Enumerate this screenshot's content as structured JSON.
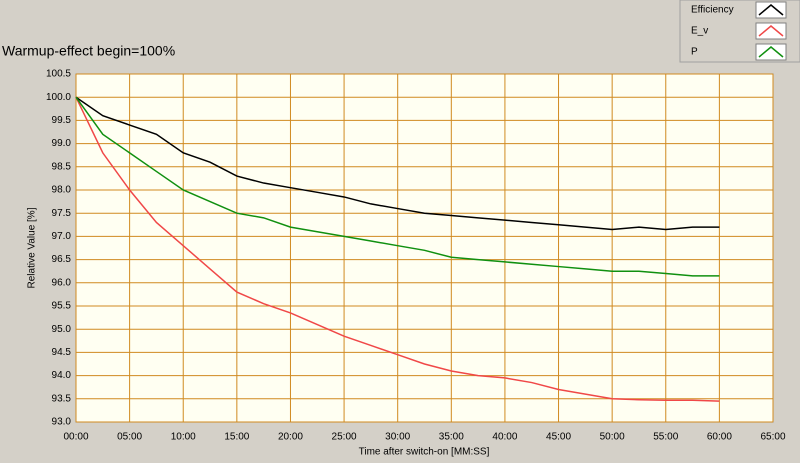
{
  "chart_data": {
    "type": "line",
    "title": "Warmup-effect begin=100%",
    "x_label": "Time after switch-on [MM:SS]",
    "y_label": "Relative Value [%]",
    "x": [
      0,
      2.5,
      5,
      7.5,
      10,
      12.5,
      15,
      17.5,
      20,
      22.5,
      25,
      27.5,
      30,
      32.5,
      35,
      37.5,
      40,
      42.5,
      45,
      47.5,
      50,
      52.5,
      55,
      57.5,
      60
    ],
    "series": [
      {
        "name": "Efficiency",
        "color": "#000000",
        "values": [
          100.0,
          99.6,
          99.4,
          99.2,
          98.8,
          98.6,
          98.3,
          98.15,
          98.05,
          97.95,
          97.85,
          97.7,
          97.6,
          97.5,
          97.45,
          97.4,
          97.35,
          97.3,
          97.25,
          97.2,
          97.15,
          97.2,
          97.15,
          97.2,
          97.2
        ]
      },
      {
        "name": "E_v",
        "color": "#f04848",
        "values": [
          100.0,
          98.8,
          98.0,
          97.3,
          96.8,
          96.3,
          95.8,
          95.55,
          95.35,
          95.1,
          94.85,
          94.65,
          94.45,
          94.25,
          94.1,
          94.0,
          93.95,
          93.85,
          93.7,
          93.6,
          93.5,
          93.48,
          93.47,
          93.47,
          93.45
        ]
      },
      {
        "name": "P",
        "color": "#109010",
        "values": [
          100.0,
          99.2,
          98.8,
          98.4,
          98.0,
          97.75,
          97.5,
          97.4,
          97.2,
          97.1,
          97.0,
          96.9,
          96.8,
          96.7,
          96.55,
          96.5,
          96.45,
          96.4,
          96.35,
          96.3,
          96.25,
          96.25,
          96.2,
          96.15,
          96.15
        ]
      }
    ],
    "xlim": [
      0,
      65
    ],
    "xticks": [
      {
        "value": 0,
        "label": "00:00"
      },
      {
        "value": 5,
        "label": "05:00"
      },
      {
        "value": 10,
        "label": "10:00"
      },
      {
        "value": 15,
        "label": "15:00"
      },
      {
        "value": 20,
        "label": "20:00"
      },
      {
        "value": 25,
        "label": "25:00"
      },
      {
        "value": 30,
        "label": "30:00"
      },
      {
        "value": 35,
        "label": "35:00"
      },
      {
        "value": 40,
        "label": "40:00"
      },
      {
        "value": 45,
        "label": "45:00"
      },
      {
        "value": 50,
        "label": "50:00"
      },
      {
        "value": 55,
        "label": "55:00"
      },
      {
        "value": 60,
        "label": "60:00"
      },
      {
        "value": 65,
        "label": "65:00"
      }
    ],
    "ylim": [
      93,
      100.5
    ],
    "yticks": [
      {
        "value": 93,
        "label": "93.0"
      },
      93.5,
      {
        "value": 94,
        "label": "94.0"
      },
      94.5,
      {
        "value": 95,
        "label": "95.0"
      },
      95.5,
      {
        "value": 96,
        "label": "96.0"
      },
      96.5,
      {
        "value": 97,
        "label": "97.0"
      },
      97.5,
      {
        "value": 98,
        "label": "98.0"
      },
      98.5,
      {
        "value": 99,
        "label": "99.0"
      },
      99.5,
      {
        "value": 100,
        "label": "100.0"
      },
      100.5
    ],
    "grid": true
  }
}
